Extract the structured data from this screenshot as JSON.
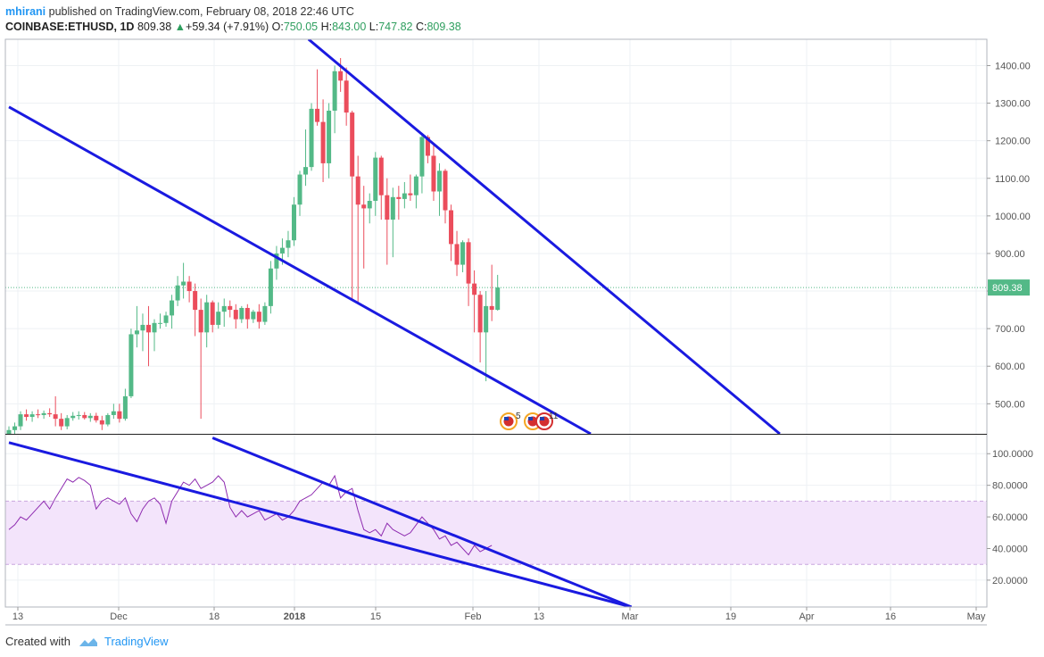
{
  "header": {
    "author": "mhirani",
    "published_text": " published on TradingView.com, February 08, 2018 22:46 UTC"
  },
  "symbol": {
    "name": "COINBASE:ETHUSD, 1D",
    "last": "809.38",
    "change": "+59.34 (+7.91%)",
    "o_label": "O:",
    "o": "750.05",
    "h_label": "H:",
    "h": "843.00",
    "l_label": "L:",
    "l": "747.82",
    "c_label": "C:",
    "c": "809.38"
  },
  "colors": {
    "up": "#53b987",
    "down": "#eb4d5c",
    "trend": "#1a1ae0",
    "rsi": "#8e2bb0",
    "rsi_band": "#f3e4fb",
    "grid": "#eef1f4",
    "price_tag": "#53b987"
  },
  "footer": {
    "created_with": "Created with",
    "brand": "TradingView"
  },
  "events": {
    "badge1": "5",
    "badge2": "11"
  },
  "chart_data": [
    {
      "type": "candlestick",
      "title": "COINBASE:ETHUSD, 1D",
      "ylim": [
        420,
        1470
      ],
      "y_ticks": [
        "500.00",
        "600.00",
        "700.00",
        "800.00",
        "900.00",
        "1000.00",
        "1100.00",
        "1200.00",
        "1300.00",
        "1400.00"
      ],
      "y_tick_values": [
        500,
        600,
        700,
        800,
        900,
        1000,
        1100,
        1200,
        1300,
        1400
      ],
      "last_price": 809.38,
      "last_price_label": "809.38",
      "x_ticks": [
        "13",
        "Dec",
        "18",
        "2018",
        "15",
        "Feb",
        "13",
        "Mar",
        "19",
        "Apr",
        "16",
        "May"
      ],
      "candles": [
        {
          "o": 420,
          "h": 440,
          "l": 410,
          "c": 430
        },
        {
          "o": 430,
          "h": 450,
          "l": 420,
          "c": 440
        },
        {
          "o": 440,
          "h": 480,
          "l": 430,
          "c": 472
        },
        {
          "o": 472,
          "h": 485,
          "l": 455,
          "c": 465
        },
        {
          "o": 465,
          "h": 480,
          "l": 452,
          "c": 472
        },
        {
          "o": 472,
          "h": 485,
          "l": 462,
          "c": 470
        },
        {
          "o": 470,
          "h": 482,
          "l": 460,
          "c": 475
        },
        {
          "o": 475,
          "h": 488,
          "l": 465,
          "c": 472
        },
        {
          "o": 472,
          "h": 520,
          "l": 440,
          "c": 460
        },
        {
          "o": 460,
          "h": 475,
          "l": 430,
          "c": 440
        },
        {
          "o": 440,
          "h": 470,
          "l": 432,
          "c": 462
        },
        {
          "o": 462,
          "h": 478,
          "l": 455,
          "c": 468
        },
        {
          "o": 468,
          "h": 480,
          "l": 458,
          "c": 470
        },
        {
          "o": 470,
          "h": 478,
          "l": 458,
          "c": 462
        },
        {
          "o": 462,
          "h": 475,
          "l": 452,
          "c": 468
        },
        {
          "o": 468,
          "h": 476,
          "l": 450,
          "c": 456
        },
        {
          "o": 456,
          "h": 468,
          "l": 430,
          "c": 445
        },
        {
          "o": 445,
          "h": 475,
          "l": 440,
          "c": 470
        },
        {
          "o": 470,
          "h": 500,
          "l": 460,
          "c": 480
        },
        {
          "o": 480,
          "h": 500,
          "l": 450,
          "c": 460
        },
        {
          "o": 460,
          "h": 540,
          "l": 455,
          "c": 520
        },
        {
          "o": 520,
          "h": 700,
          "l": 515,
          "c": 685
        },
        {
          "o": 685,
          "h": 760,
          "l": 650,
          "c": 695
        },
        {
          "o": 695,
          "h": 740,
          "l": 640,
          "c": 710
        },
        {
          "o": 710,
          "h": 760,
          "l": 600,
          "c": 690
        },
        {
          "o": 690,
          "h": 725,
          "l": 640,
          "c": 715
        },
        {
          "o": 715,
          "h": 740,
          "l": 700,
          "c": 715
        },
        {
          "o": 715,
          "h": 745,
          "l": 705,
          "c": 735
        },
        {
          "o": 735,
          "h": 790,
          "l": 700,
          "c": 775
        },
        {
          "o": 775,
          "h": 840,
          "l": 760,
          "c": 815
        },
        {
          "o": 815,
          "h": 875,
          "l": 780,
          "c": 825
        },
        {
          "o": 825,
          "h": 840,
          "l": 770,
          "c": 800
        },
        {
          "o": 800,
          "h": 820,
          "l": 680,
          "c": 750
        },
        {
          "o": 750,
          "h": 780,
          "l": 460,
          "c": 690
        },
        {
          "o": 690,
          "h": 790,
          "l": 650,
          "c": 770
        },
        {
          "o": 770,
          "h": 775,
          "l": 690,
          "c": 710
        },
        {
          "o": 710,
          "h": 770,
          "l": 700,
          "c": 745
        },
        {
          "o": 745,
          "h": 780,
          "l": 705,
          "c": 760
        },
        {
          "o": 760,
          "h": 775,
          "l": 730,
          "c": 750
        },
        {
          "o": 750,
          "h": 765,
          "l": 700,
          "c": 725
        },
        {
          "o": 725,
          "h": 760,
          "l": 715,
          "c": 755
        },
        {
          "o": 755,
          "h": 765,
          "l": 700,
          "c": 725
        },
        {
          "o": 725,
          "h": 750,
          "l": 715,
          "c": 745
        },
        {
          "o": 745,
          "h": 765,
          "l": 700,
          "c": 718
        },
        {
          "o": 718,
          "h": 770,
          "l": 710,
          "c": 760
        },
        {
          "o": 760,
          "h": 880,
          "l": 740,
          "c": 860
        },
        {
          "o": 860,
          "h": 920,
          "l": 830,
          "c": 900
        },
        {
          "o": 900,
          "h": 940,
          "l": 870,
          "c": 915
        },
        {
          "o": 915,
          "h": 960,
          "l": 890,
          "c": 935
        },
        {
          "o": 935,
          "h": 1050,
          "l": 920,
          "c": 1030
        },
        {
          "o": 1030,
          "h": 1120,
          "l": 1000,
          "c": 1110
        },
        {
          "o": 1110,
          "h": 1230,
          "l": 1080,
          "c": 1130
        },
        {
          "o": 1130,
          "h": 1300,
          "l": 1120,
          "c": 1285
        },
        {
          "o": 1285,
          "h": 1390,
          "l": 1240,
          "c": 1250
        },
        {
          "o": 1250,
          "h": 1310,
          "l": 1090,
          "c": 1140
        },
        {
          "o": 1140,
          "h": 1300,
          "l": 1100,
          "c": 1280
        },
        {
          "o": 1280,
          "h": 1400,
          "l": 1220,
          "c": 1385
        },
        {
          "o": 1385,
          "h": 1420,
          "l": 1330,
          "c": 1360
        },
        {
          "o": 1360,
          "h": 1395,
          "l": 1240,
          "c": 1275
        },
        {
          "o": 1275,
          "h": 1280,
          "l": 780,
          "c": 1105
        },
        {
          "o": 1105,
          "h": 1160,
          "l": 770,
          "c": 1030
        },
        {
          "o": 1030,
          "h": 1080,
          "l": 860,
          "c": 1020
        },
        {
          "o": 1020,
          "h": 1060,
          "l": 980,
          "c": 1040
        },
        {
          "o": 1040,
          "h": 1170,
          "l": 1000,
          "c": 1155
        },
        {
          "o": 1155,
          "h": 1160,
          "l": 990,
          "c": 1055
        },
        {
          "o": 1055,
          "h": 1100,
          "l": 870,
          "c": 990
        },
        {
          "o": 990,
          "h": 1075,
          "l": 890,
          "c": 1050
        },
        {
          "o": 1050,
          "h": 1080,
          "l": 990,
          "c": 1045
        },
        {
          "o": 1045,
          "h": 1090,
          "l": 1020,
          "c": 1060
        },
        {
          "o": 1060,
          "h": 1110,
          "l": 1040,
          "c": 1055
        },
        {
          "o": 1055,
          "h": 1110,
          "l": 1020,
          "c": 1105
        },
        {
          "o": 1105,
          "h": 1220,
          "l": 1060,
          "c": 1210
        },
        {
          "o": 1210,
          "h": 1215,
          "l": 1140,
          "c": 1160
        },
        {
          "o": 1160,
          "h": 1190,
          "l": 1040,
          "c": 1065
        },
        {
          "o": 1065,
          "h": 1140,
          "l": 1000,
          "c": 1120
        },
        {
          "o": 1120,
          "h": 1125,
          "l": 980,
          "c": 1015
        },
        {
          "o": 1015,
          "h": 1030,
          "l": 880,
          "c": 925
        },
        {
          "o": 925,
          "h": 960,
          "l": 840,
          "c": 870
        },
        {
          "o": 870,
          "h": 935,
          "l": 850,
          "c": 930
        },
        {
          "o": 930,
          "h": 940,
          "l": 760,
          "c": 820
        },
        {
          "o": 820,
          "h": 855,
          "l": 690,
          "c": 790
        },
        {
          "o": 790,
          "h": 800,
          "l": 610,
          "c": 690
        },
        {
          "o": 690,
          "h": 800,
          "l": 560,
          "c": 760
        },
        {
          "o": 760,
          "h": 870,
          "l": 720,
          "c": 750
        },
        {
          "o": 750,
          "h": 843,
          "l": 747.82,
          "c": 809.38
        }
      ],
      "trendlines": [
        {
          "name": "upper",
          "from": {
            "i": 51.5,
            "y": 1470
          },
          "to": {
            "i": 132.5,
            "y": 420
          }
        },
        {
          "name": "lower",
          "from": {
            "i": 0,
            "y": 1290
          },
          "to": {
            "i": 100,
            "y": 420
          }
        }
      ]
    },
    {
      "type": "line",
      "title": "",
      "ylim": [
        3,
        112
      ],
      "y_ticks": [
        "20.0000",
        "40.0000",
        "60.0000",
        "80.0000",
        "100.0000"
      ],
      "y_tick_values": [
        20,
        40,
        60,
        80,
        100
      ],
      "band": [
        30,
        70
      ],
      "series": [
        {
          "name": "",
          "values": [
            52,
            55,
            60,
            58,
            62,
            66,
            70,
            65,
            72,
            78,
            84,
            82,
            85,
            83,
            80,
            65,
            70,
            72,
            70,
            68,
            72,
            62,
            57,
            65,
            70,
            72,
            68,
            56,
            70,
            76,
            82,
            80,
            84,
            78,
            80,
            82,
            86,
            82,
            66,
            60,
            64,
            60,
            62,
            64,
            58,
            60,
            62,
            58,
            60,
            64,
            70,
            72,
            74,
            78,
            82,
            80,
            86,
            72,
            76,
            78,
            64,
            52,
            50,
            52,
            48,
            56,
            52,
            50,
            48,
            50,
            55,
            60,
            56,
            52,
            46,
            48,
            42,
            44,
            40,
            36,
            42,
            38,
            40,
            42
          ]
        }
      ],
      "trendlines": [
        {
          "name": "rsi-lower",
          "from": {
            "i": 0,
            "y": 107
          },
          "to": {
            "i": 107,
            "y": 3
          }
        },
        {
          "name": "rsi-upper",
          "from": {
            "i": 35,
            "y": 110
          },
          "to": {
            "i": 107,
            "y": 3
          }
        }
      ]
    }
  ]
}
